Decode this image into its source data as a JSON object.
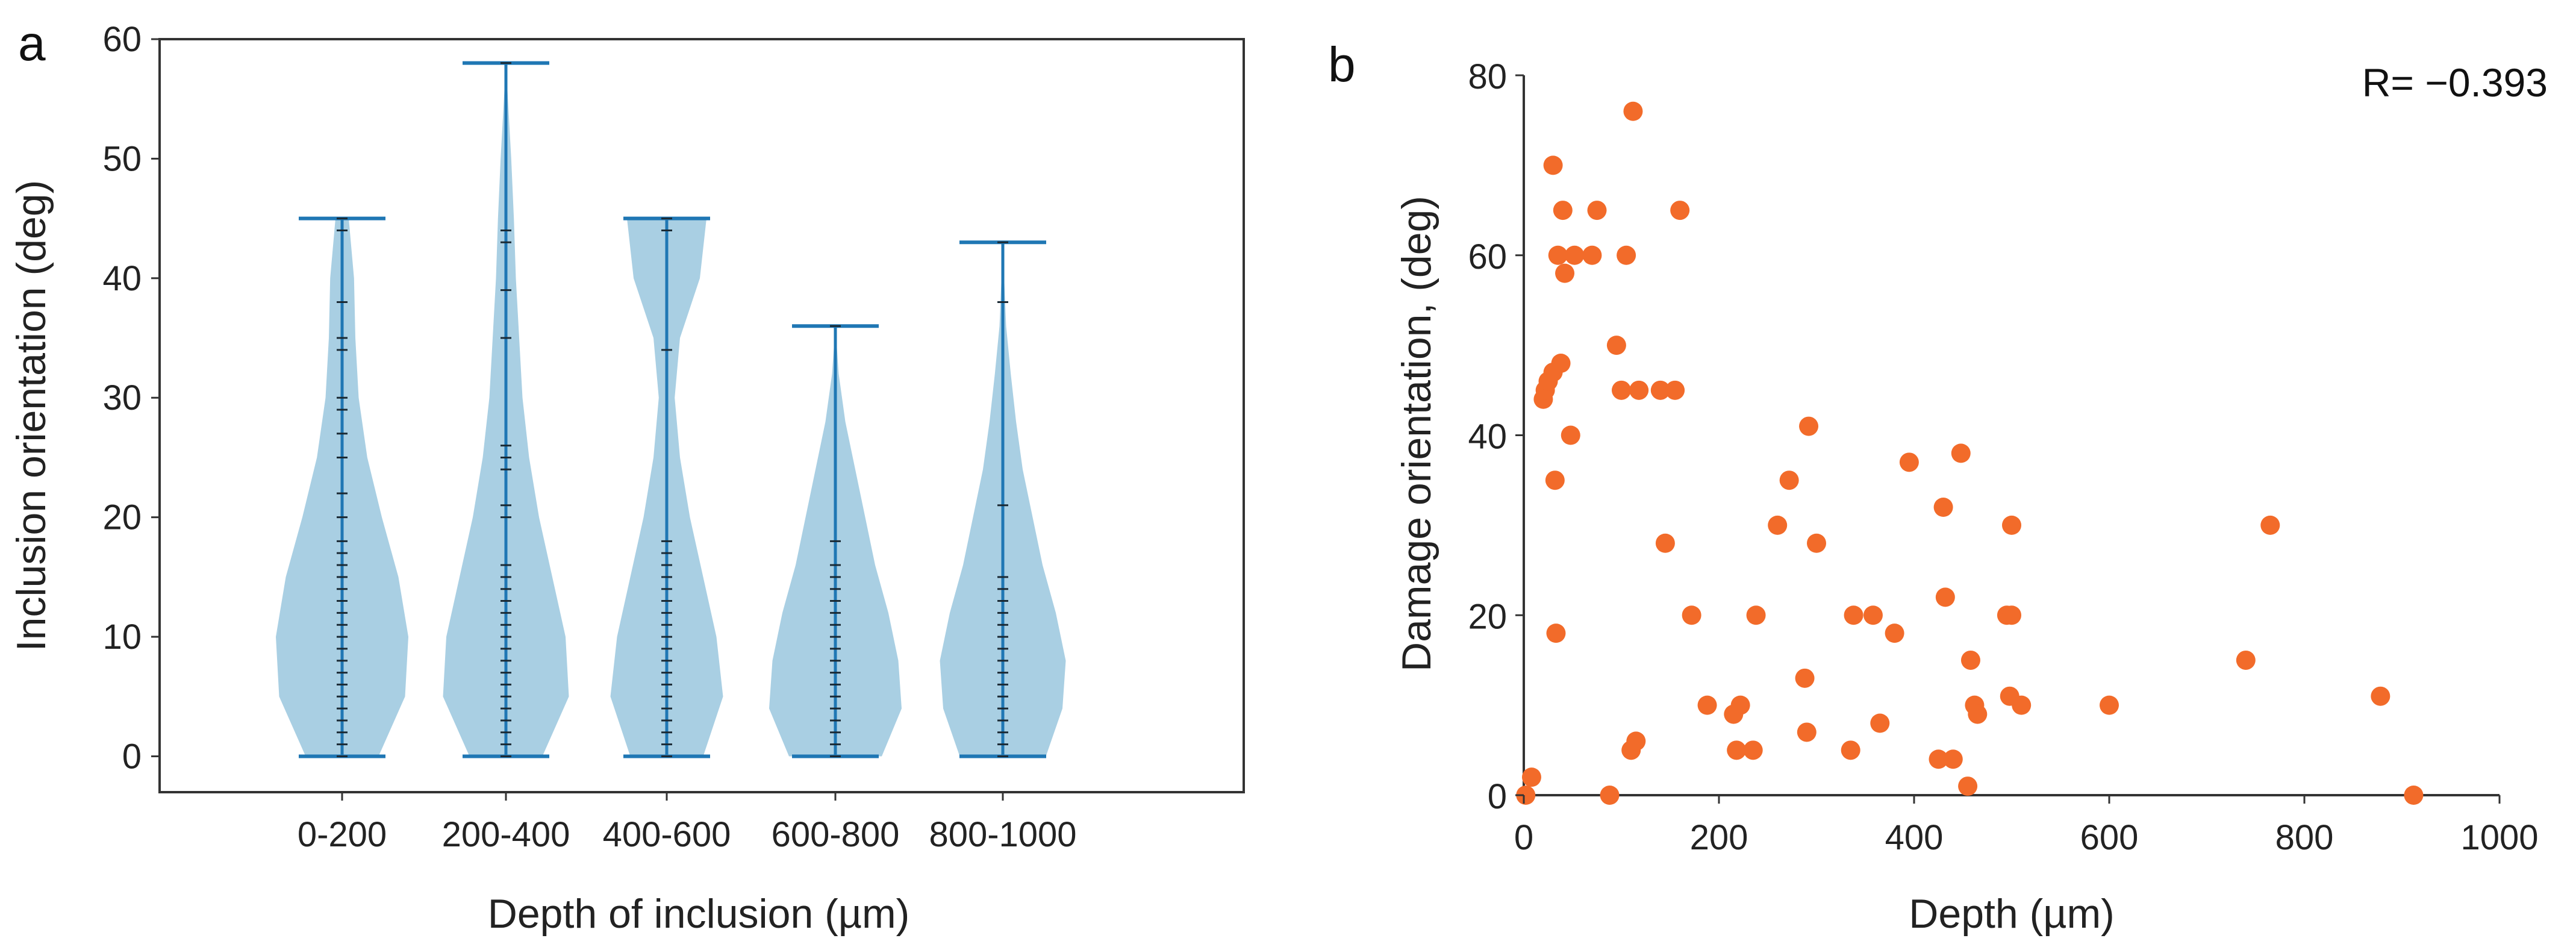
{
  "chart_data": [
    {
      "type": "violin",
      "panel_label": "a",
      "xlabel": "Depth of inclusion (µm)",
      "ylabel": "Inclusion orientation (deg)",
      "ylim": [
        -3,
        60
      ],
      "yticks": [
        0,
        10,
        20,
        30,
        40,
        50,
        60
      ],
      "categories": [
        "0-200",
        "200-400",
        "400-600",
        "600-800",
        "800-1000"
      ],
      "box": "full frame",
      "grid": false,
      "colors": {
        "violin_fill": "#a9cfe3",
        "whisker": "#1f77b4",
        "points": "#1b2a34",
        "axis": "#333333"
      },
      "groups": [
        {
          "category": "0-200",
          "min": 0,
          "max": 45,
          "points": [
            0,
            1,
            2,
            3,
            4,
            5,
            6,
            7,
            8,
            9,
            10,
            11,
            12,
            13,
            14,
            15,
            16,
            17,
            18,
            20,
            22,
            25,
            27,
            29,
            30,
            34,
            35,
            38,
            44,
            45
          ],
          "density": [
            [
              0,
              0.55
            ],
            [
              5,
              0.95
            ],
            [
              10,
              1.0
            ],
            [
              15,
              0.85
            ],
            [
              20,
              0.6
            ],
            [
              25,
              0.38
            ],
            [
              30,
              0.25
            ],
            [
              35,
              0.2
            ],
            [
              40,
              0.18
            ],
            [
              45,
              0.1
            ]
          ]
        },
        {
          "category": "200-400",
          "min": 0,
          "max": 58,
          "points": [
            0,
            1,
            2,
            3,
            4,
            5,
            6,
            7,
            8,
            9,
            10,
            11,
            12,
            13,
            14,
            15,
            16,
            20,
            21,
            24,
            25,
            26,
            35,
            39,
            43,
            44,
            58
          ],
          "density": [
            [
              0,
              0.55
            ],
            [
              5,
              0.95
            ],
            [
              10,
              0.9
            ],
            [
              15,
              0.7
            ],
            [
              20,
              0.5
            ],
            [
              25,
              0.35
            ],
            [
              30,
              0.25
            ],
            [
              35,
              0.2
            ],
            [
              40,
              0.15
            ],
            [
              45,
              0.12
            ],
            [
              50,
              0.08
            ],
            [
              55,
              0.03
            ],
            [
              58,
              0.0
            ]
          ]
        },
        {
          "category": "400-600",
          "min": 0,
          "max": 45,
          "points": [
            0,
            1,
            2,
            3,
            4,
            5,
            6,
            7,
            8,
            9,
            10,
            11,
            12,
            13,
            14,
            15,
            16,
            17,
            18,
            34,
            44,
            45
          ],
          "density": [
            [
              0,
              0.55
            ],
            [
              5,
              0.85
            ],
            [
              10,
              0.75
            ],
            [
              15,
              0.55
            ],
            [
              20,
              0.35
            ],
            [
              25,
              0.2
            ],
            [
              30,
              0.12
            ],
            [
              35,
              0.2
            ],
            [
              40,
              0.5
            ],
            [
              45,
              0.6
            ]
          ]
        },
        {
          "category": "600-800",
          "min": 0,
          "max": 36,
          "points": [
            0,
            1,
            2,
            3,
            4,
            5,
            6,
            7,
            8,
            9,
            10,
            11,
            12,
            13,
            14,
            15,
            16,
            18,
            36
          ],
          "density": [
            [
              0,
              0.7
            ],
            [
              4,
              1.0
            ],
            [
              8,
              0.95
            ],
            [
              12,
              0.8
            ],
            [
              16,
              0.6
            ],
            [
              20,
              0.45
            ],
            [
              24,
              0.3
            ],
            [
              28,
              0.15
            ],
            [
              32,
              0.05
            ],
            [
              36,
              0.0
            ]
          ]
        },
        {
          "category": "800-1000",
          "min": 0,
          "max": 43,
          "points": [
            0,
            1,
            2,
            3,
            4,
            5,
            6,
            7,
            8,
            9,
            10,
            11,
            12,
            13,
            14,
            15,
            21,
            38,
            43
          ],
          "density": [
            [
              0,
              0.65
            ],
            [
              4,
              0.9
            ],
            [
              8,
              0.95
            ],
            [
              12,
              0.8
            ],
            [
              16,
              0.6
            ],
            [
              20,
              0.45
            ],
            [
              24,
              0.3
            ],
            [
              28,
              0.2
            ],
            [
              32,
              0.12
            ],
            [
              36,
              0.05
            ],
            [
              40,
              0.02
            ],
            [
              43,
              0.0
            ]
          ]
        }
      ]
    },
    {
      "type": "scatter",
      "panel_label": "b",
      "xlabel": "Depth (µm)",
      "ylabel": "Damage orientation, (deg)",
      "xlim": [
        0,
        1000
      ],
      "ylim": [
        0,
        80
      ],
      "xticks": [
        0,
        200,
        400,
        600,
        800,
        1000
      ],
      "yticks": [
        0,
        20,
        40,
        60,
        80
      ],
      "annotation": "R= −0.393",
      "grid": false,
      "colors": {
        "points": "#f26b2a",
        "axis": "#333333"
      },
      "points": [
        [
          2,
          0
        ],
        [
          8,
          2
        ],
        [
          20,
          44
        ],
        [
          22,
          45
        ],
        [
          25,
          46
        ],
        [
          30,
          70
        ],
        [
          30,
          47
        ],
        [
          32,
          35
        ],
        [
          33,
          18
        ],
        [
          35,
          60
        ],
        [
          38,
          48
        ],
        [
          40,
          65
        ],
        [
          42,
          58
        ],
        [
          48,
          40
        ],
        [
          52,
          60
        ],
        [
          70,
          60
        ],
        [
          75,
          65
        ],
        [
          88,
          0
        ],
        [
          95,
          50
        ],
        [
          100,
          45
        ],
        [
          105,
          60
        ],
        [
          110,
          5
        ],
        [
          112,
          76
        ],
        [
          115,
          6
        ],
        [
          118,
          45
        ],
        [
          140,
          45
        ],
        [
          145,
          28
        ],
        [
          155,
          45
        ],
        [
          160,
          65
        ],
        [
          172,
          20
        ],
        [
          188,
          10
        ],
        [
          215,
          9
        ],
        [
          218,
          5
        ],
        [
          222,
          10
        ],
        [
          235,
          5
        ],
        [
          238,
          20
        ],
        [
          260,
          30
        ],
        [
          272,
          35
        ],
        [
          288,
          13
        ],
        [
          290,
          7
        ],
        [
          292,
          41
        ],
        [
          300,
          28
        ],
        [
          335,
          5
        ],
        [
          338,
          20
        ],
        [
          358,
          20
        ],
        [
          365,
          8
        ],
        [
          380,
          18
        ],
        [
          395,
          37
        ],
        [
          425,
          4
        ],
        [
          430,
          32
        ],
        [
          432,
          22
        ],
        [
          440,
          4
        ],
        [
          448,
          38
        ],
        [
          455,
          1
        ],
        [
          458,
          15
        ],
        [
          462,
          10
        ],
        [
          465,
          9
        ],
        [
          495,
          20
        ],
        [
          498,
          11
        ],
        [
          500,
          20
        ],
        [
          500,
          30
        ],
        [
          510,
          10
        ],
        [
          600,
          10
        ],
        [
          740,
          15
        ],
        [
          765,
          30
        ],
        [
          878,
          11
        ],
        [
          912,
          0
        ]
      ]
    }
  ]
}
